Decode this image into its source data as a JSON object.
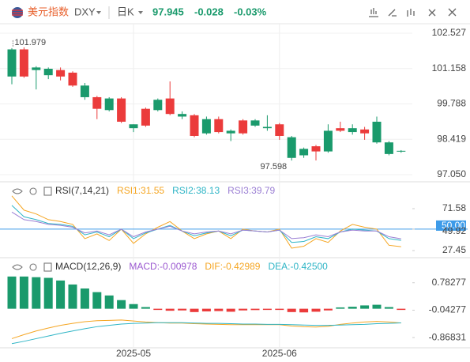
{
  "header": {
    "name": "美元指数",
    "symbol": "DXY",
    "period": "日K",
    "price": "97.945",
    "change": "-0.028",
    "change_pct": "-0.03%"
  },
  "chart_data": [
    {
      "type": "candlestick",
      "up_color": "#eb3b3b",
      "down_color": "#1a9a6c",
      "open": [
        101.9,
        100.85,
        101.2,
        101.15,
        100.85,
        100.5,
        100.5,
        99.6,
        100.0,
        99.1,
        99.0,
        98.95,
        99.95,
        99.4,
        99.4,
        98.55,
        99.2,
        98.7,
        98.75,
        98.65,
        99.15,
        98.9,
        98.55,
        98.5,
        98.05,
        97.95,
        98.75,
        98.75,
        98.85,
        98.65,
        99.1,
        98.3,
        97.973
      ],
      "high": [
        101.95,
        101.979,
        101.25,
        101.2,
        101.2,
        101.05,
        100.6,
        100.1,
        100.05,
        100.05,
        99.0,
        99.65,
        100.0,
        100.66,
        99.5,
        99.4,
        99.3,
        99.3,
        98.8,
        99.2,
        99.2,
        99.35,
        99.05,
        98.55,
        98.1,
        98.2,
        99.0,
        99.1,
        99.0,
        98.9,
        99.3,
        98.35,
        98.0
      ],
      "low": [
        100.55,
        100.8,
        100.35,
        100.75,
        100.7,
        100.45,
        99.95,
        99.2,
        99.5,
        99.05,
        98.7,
        98.9,
        99.5,
        99.35,
        99.2,
        98.5,
        98.6,
        98.65,
        98.35,
        98.6,
        98.9,
        98.75,
        98.4,
        97.598,
        97.7,
        97.6,
        97.9,
        98.7,
        98.6,
        98.4,
        98.25,
        97.8,
        97.9
      ],
      "close": [
        100.85,
        101.9,
        101.1,
        100.9,
        101.1,
        101.0,
        100.05,
        100.05,
        99.55,
        100.0,
        98.85,
        99.6,
        99.55,
        100.0,
        99.3,
        99.35,
        98.65,
        99.2,
        98.65,
        99.15,
        98.95,
        98.85,
        99.0,
        97.7,
        97.8,
        98.15,
        97.95,
        98.85,
        98.7,
        98.8,
        98.3,
        97.85,
        97.945
      ],
      "ylim": [
        96.836,
        102.894
      ],
      "yticks": [
        102.527,
        101.158,
        99.788,
        98.419,
        {
          "value": 97.05,
          "label": "97.050"
        }
      ],
      "max_label": "101.979",
      "min_label": "97.598"
    },
    {
      "type": "line",
      "title": "RSI(7,14,21)",
      "ylim": [
        20.79,
        98.2
      ],
      "yticks": [
        71.58,
        {
          "value": 50,
          "label": "50.00"
        },
        49.92,
        27.45
      ],
      "hline": 50,
      "hline_color": "#3d9be9",
      "series": [
        {
          "name": "RSI1:31.55",
          "color": "#f5a623",
          "values": [
            85,
            70,
            66,
            60,
            58,
            55,
            40,
            45,
            38,
            50,
            35,
            45,
            52,
            58,
            48,
            40,
            45,
            48,
            40,
            50,
            48,
            47,
            50,
            30,
            32,
            40,
            36,
            48,
            55,
            52,
            50,
            33,
            31.55
          ]
        },
        {
          "name": "RSI2:38.13",
          "color": "#2fb5c6",
          "values": [
            75,
            63,
            60,
            56,
            55,
            53,
            44,
            47,
            42,
            50,
            40,
            46,
            50,
            54,
            48,
            43,
            46,
            48,
            43,
            49,
            48,
            47,
            49,
            36,
            37,
            42,
            40,
            47,
            50,
            49,
            48,
            40,
            38.13
          ]
        },
        {
          "name": "RSI3:39.79",
          "color": "#9b7fd4",
          "values": [
            68,
            60,
            58,
            55,
            54,
            52,
            46,
            48,
            44,
            50,
            42,
            47,
            50,
            53,
            48,
            45,
            47,
            48,
            45,
            49,
            48,
            47,
            49,
            40,
            41,
            44,
            42,
            47,
            49,
            48,
            48,
            42,
            39.79
          ]
        }
      ]
    },
    {
      "type": "macd",
      "title": "MACD(12,26,9)",
      "ylim": [
        -1.175,
        1.49
      ],
      "yticks": [
        0.78277,
        -0.04277,
        -0.86831
      ],
      "categories": [
        null,
        null,
        null,
        null,
        null,
        null,
        null,
        null,
        null,
        null,
        "2025-05",
        null,
        null,
        null,
        null,
        null,
        null,
        null,
        null,
        null,
        null,
        null,
        "2025-06",
        null,
        null,
        null,
        null,
        null,
        null,
        null,
        null,
        null,
        null
      ],
      "series": [
        {
          "name": "MACD:-0.00978",
          "color": "#9b59d0",
          "up_color": "#1a9a6c",
          "down_color": "#eb3b3b",
          "values": [
            0.97,
            0.97,
            0.95,
            0.93,
            0.85,
            0.73,
            0.61,
            0.5,
            0.4,
            0.26,
            0.14,
            0.05,
            -0.03,
            -0.06,
            -0.05,
            -0.1,
            -0.08,
            -0.07,
            -0.09,
            -0.05,
            -0.04,
            -0.03,
            -0.03,
            -0.1,
            -0.11,
            -0.09,
            -0.05,
            0.04,
            0.06,
            0.1,
            0.12,
            0.05,
            -0.00978
          ]
        },
        {
          "name": "DIF:-0.42989",
          "color": "#f5a623",
          "values": [
            -0.9,
            -0.78,
            -0.67,
            -0.58,
            -0.5,
            -0.44,
            -0.39,
            -0.36,
            -0.35,
            -0.34,
            -0.37,
            -0.4,
            -0.42,
            -0.43,
            -0.43,
            -0.45,
            -0.46,
            -0.47,
            -0.48,
            -0.48,
            -0.48,
            -0.48,
            -0.48,
            -0.52,
            -0.54,
            -0.55,
            -0.53,
            -0.47,
            -0.43,
            -0.4,
            -0.38,
            -0.4,
            -0.42989
          ]
        },
        {
          "name": "DEA:-0.42500",
          "color": "#2fb5c6",
          "values": [
            -1.05,
            -0.98,
            -0.9,
            -0.82,
            -0.74,
            -0.67,
            -0.6,
            -0.54,
            -0.5,
            -0.46,
            -0.44,
            -0.43,
            -0.42,
            -0.42,
            -0.42,
            -0.43,
            -0.44,
            -0.44,
            -0.45,
            -0.46,
            -0.46,
            -0.47,
            -0.47,
            -0.48,
            -0.49,
            -0.5,
            -0.5,
            -0.49,
            -0.48,
            -0.47,
            -0.45,
            -0.44,
            -0.425
          ]
        }
      ]
    }
  ]
}
